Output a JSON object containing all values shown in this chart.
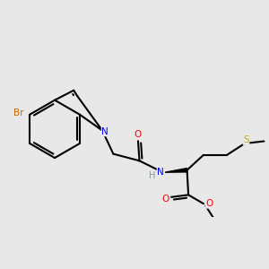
{
  "bg_color": "#e8e8e8",
  "bond_color": "#000000",
  "bond_width": 1.5,
  "colors": {
    "Br": "#cc6600",
    "N": "#0000ff",
    "O": "#ff0000",
    "S": "#ccaa00",
    "H": "#7a9a9a"
  }
}
